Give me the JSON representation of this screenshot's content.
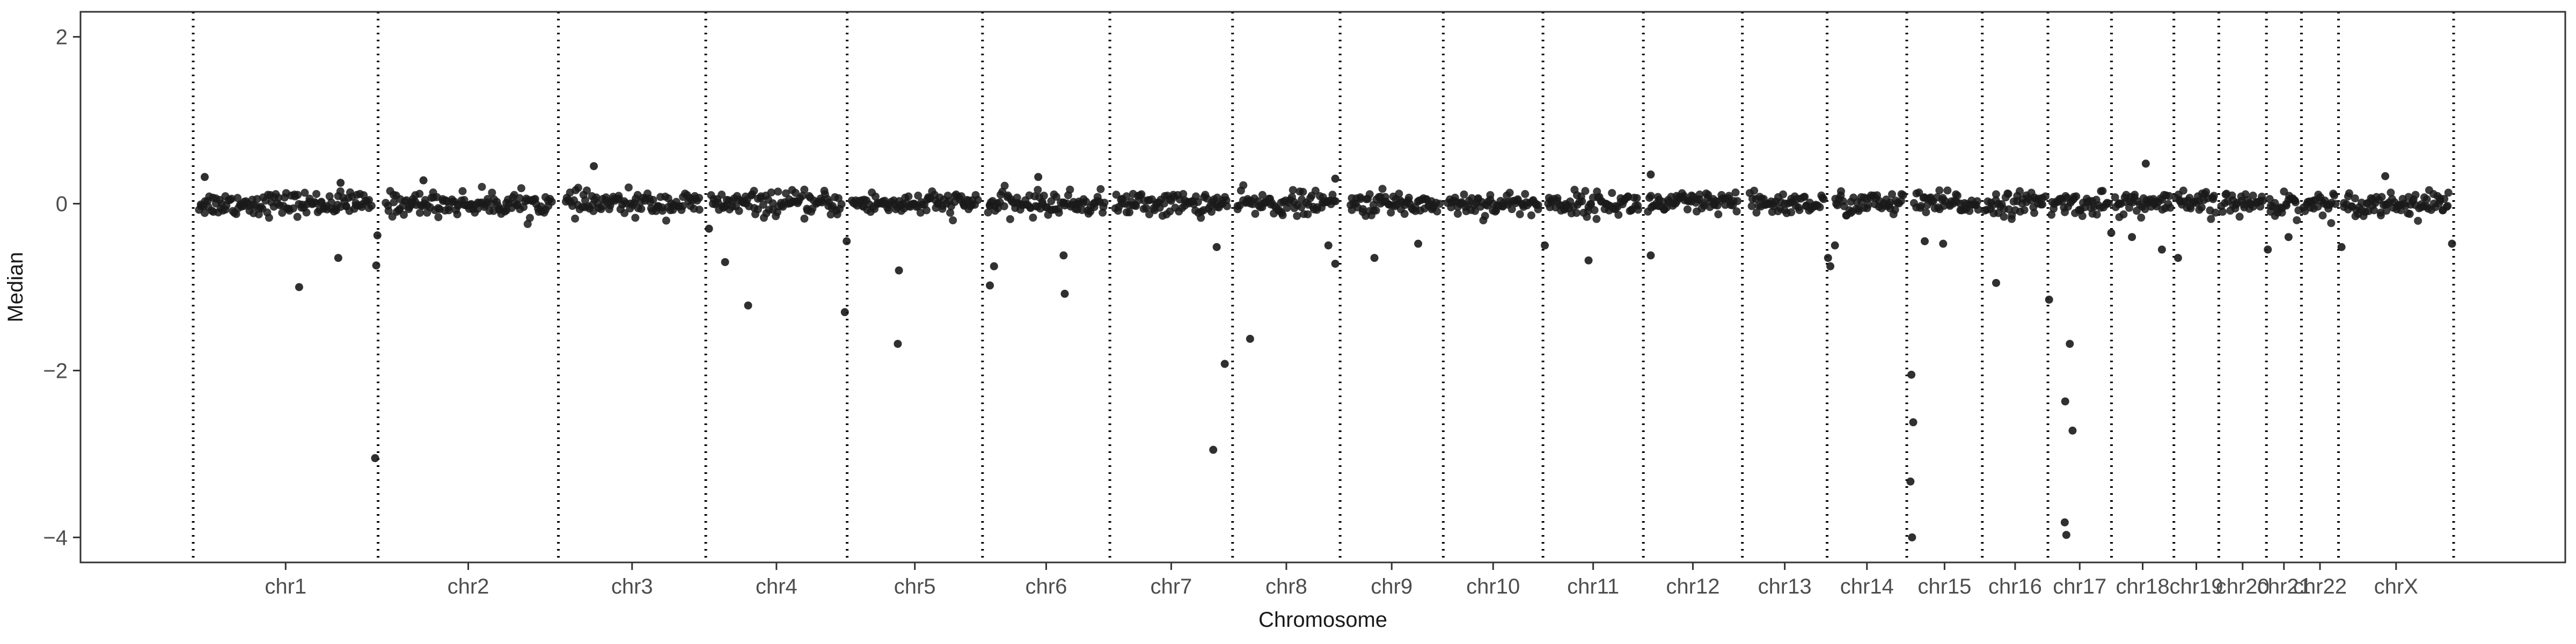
{
  "chart_data": {
    "type": "scatter",
    "title": "",
    "xlabel": "Chromosome",
    "ylabel": "Median",
    "ylim": [
      -4.3,
      2.3
    ],
    "y_ticks": [
      -4,
      -2,
      0,
      2
    ],
    "xlim": [
      0,
      1.166
    ],
    "grid": false,
    "legend": "none",
    "point_color": "#1a1a1a",
    "boundary_line_style": "dotted",
    "chromosomes": [
      {
        "name": "chr1",
        "start": 0.0,
        "end": 0.0803
      },
      {
        "name": "chr2",
        "start": 0.0803,
        "end": 0.1586
      },
      {
        "name": "chr3",
        "start": 0.1586,
        "end": 0.2226
      },
      {
        "name": "chr4",
        "start": 0.2226,
        "end": 0.284
      },
      {
        "name": "chr5",
        "start": 0.284,
        "end": 0.3428
      },
      {
        "name": "chr6",
        "start": 0.3428,
        "end": 0.3981
      },
      {
        "name": "chr7",
        "start": 0.3981,
        "end": 0.4514
      },
      {
        "name": "chr8",
        "start": 0.4514,
        "end": 0.4981
      },
      {
        "name": "chr9",
        "start": 0.4981,
        "end": 0.5429
      },
      {
        "name": "chr10",
        "start": 0.5429,
        "end": 0.5862
      },
      {
        "name": "chr11",
        "start": 0.5862,
        "end": 0.6298
      },
      {
        "name": "chr12",
        "start": 0.6298,
        "end": 0.6728
      },
      {
        "name": "chr13",
        "start": 0.6728,
        "end": 0.7096
      },
      {
        "name": "chr14",
        "start": 0.7096,
        "end": 0.7442
      },
      {
        "name": "chr15",
        "start": 0.7442,
        "end": 0.777
      },
      {
        "name": "chr16",
        "start": 0.777,
        "end": 0.8055
      },
      {
        "name": "chr17",
        "start": 0.8055,
        "end": 0.8331
      },
      {
        "name": "chr18",
        "start": 0.8331,
        "end": 0.8602
      },
      {
        "name": "chr19",
        "start": 0.8602,
        "end": 0.8797
      },
      {
        "name": "chr20",
        "start": 0.8797,
        "end": 0.9004
      },
      {
        "name": "chr21",
        "start": 0.9004,
        "end": 0.9156
      },
      {
        "name": "chr22",
        "start": 0.9156,
        "end": 0.9317
      },
      {
        "name": "chrX",
        "start": 0.9317,
        "end": 0.9817
      }
    ],
    "outliers": [
      {
        "x": 0.046,
        "y": -1.0
      },
      {
        "x": 0.063,
        "y": -0.65
      },
      {
        "x": 0.079,
        "y": -3.05
      },
      {
        "x": 0.0795,
        "y": -0.74
      },
      {
        "x": 0.08,
        "y": -0.38
      },
      {
        "x": 0.224,
        "y": -0.3
      },
      {
        "x": 0.231,
        "y": -0.7
      },
      {
        "x": 0.241,
        "y": -1.22
      },
      {
        "x": 0.283,
        "y": -1.3
      },
      {
        "x": 0.2838,
        "y": -0.45
      },
      {
        "x": 0.3065,
        "y": -0.8
      },
      {
        "x": 0.306,
        "y": -1.68
      },
      {
        "x": 0.346,
        "y": -0.98
      },
      {
        "x": 0.3478,
        "y": -0.75
      },
      {
        "x": 0.378,
        "y": -0.62
      },
      {
        "x": 0.3785,
        "y": -1.08
      },
      {
        "x": 0.443,
        "y": -2.95
      },
      {
        "x": 0.4445,
        "y": -0.52
      },
      {
        "x": 0.448,
        "y": -1.92
      },
      {
        "x": 0.459,
        "y": -1.62
      },
      {
        "x": 0.493,
        "y": -0.5
      },
      {
        "x": 0.496,
        "y": -0.72
      },
      {
        "x": 0.513,
        "y": -0.65
      },
      {
        "x": 0.532,
        "y": -0.48
      },
      {
        "x": 0.587,
        "y": -0.5
      },
      {
        "x": 0.606,
        "y": -0.68
      },
      {
        "x": 0.633,
        "y": -0.62
      },
      {
        "x": 0.71,
        "y": -0.65
      },
      {
        "x": 0.711,
        "y": -0.75
      },
      {
        "x": 0.713,
        "y": -0.5
      },
      {
        "x": 0.7462,
        "y": -2.05
      },
      {
        "x": 0.747,
        "y": -2.62
      },
      {
        "x": 0.7458,
        "y": -3.33
      },
      {
        "x": 0.7465,
        "y": -4.0
      },
      {
        "x": 0.752,
        "y": -0.45
      },
      {
        "x": 0.76,
        "y": -0.48
      },
      {
        "x": 0.783,
        "y": -0.95
      },
      {
        "x": 0.806,
        "y": -1.15
      },
      {
        "x": 0.813,
        "y": -2.37
      },
      {
        "x": 0.815,
        "y": -1.68
      },
      {
        "x": 0.8162,
        "y": -2.72
      },
      {
        "x": 0.8128,
        "y": -3.82
      },
      {
        "x": 0.8135,
        "y": -3.97
      },
      {
        "x": 0.833,
        "y": -0.35
      },
      {
        "x": 0.842,
        "y": -0.4
      },
      {
        "x": 0.855,
        "y": -0.55
      },
      {
        "x": 0.862,
        "y": -0.65
      },
      {
        "x": 0.901,
        "y": -0.55
      },
      {
        "x": 0.91,
        "y": -0.4
      },
      {
        "x": 0.933,
        "y": -0.52
      },
      {
        "x": 0.981,
        "y": -0.48
      },
      {
        "x": 0.005,
        "y": 0.32
      },
      {
        "x": 0.064,
        "y": 0.25
      },
      {
        "x": 0.174,
        "y": 0.45
      },
      {
        "x": 0.1,
        "y": 0.28
      },
      {
        "x": 0.367,
        "y": 0.32
      },
      {
        "x": 0.496,
        "y": 0.3
      },
      {
        "x": 0.633,
        "y": 0.35
      },
      {
        "x": 0.848,
        "y": 0.48
      },
      {
        "x": 0.952,
        "y": 0.33
      }
    ],
    "bins_per_unit": 1600,
    "note_bins": ""
  }
}
